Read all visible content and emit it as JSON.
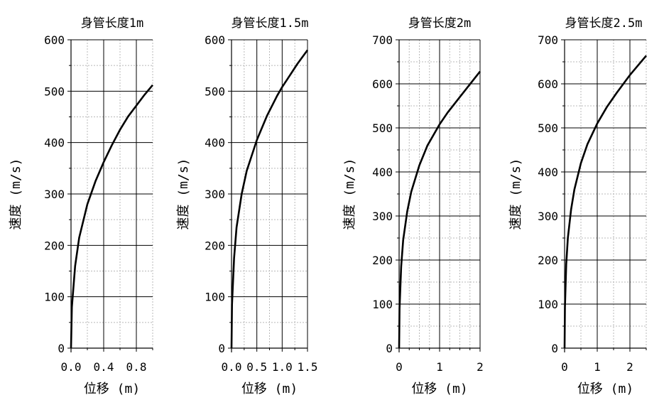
{
  "chart_data": [
    {
      "type": "line",
      "title": "身管长度1m",
      "xlabel": "位移 (m)",
      "ylabel": "速度 (m/s)",
      "xlim": [
        0,
        1
      ],
      "ylim": [
        0,
        600
      ],
      "xticks": [
        0,
        0.4,
        0.8
      ],
      "xtick_labels": [
        "0.0",
        "0.4",
        "0.8"
      ],
      "yticks": [
        0,
        100,
        200,
        300,
        400,
        500,
        600
      ],
      "ytick_labels": [
        "0",
        "100",
        "200",
        "300",
        "400",
        "500",
        "600"
      ],
      "xminor": [
        0.2,
        0.6,
        1.0
      ],
      "yminor": [
        50,
        150,
        250,
        350,
        450,
        550
      ],
      "grid": true,
      "series": [
        {
          "x": [
            0,
            0.01,
            0.05,
            0.1,
            0.2,
            0.3,
            0.4,
            0.5,
            0.6,
            0.7,
            0.8,
            0.9,
            1.0
          ],
          "y": [
            0,
            80,
            160,
            215,
            280,
            325,
            362,
            395,
            425,
            451,
            472,
            493,
            512
          ]
        }
      ]
    },
    {
      "type": "line",
      "title": "身管长度1.5m",
      "xlabel": "位移 (m)",
      "ylabel": "速度 (m/s)",
      "xlim": [
        0,
        1.5
      ],
      "ylim": [
        0,
        600
      ],
      "xticks": [
        0,
        0.5,
        1.0,
        1.5
      ],
      "xtick_labels": [
        "0.0",
        "0.5",
        "1.0",
        "1.5"
      ],
      "yticks": [
        0,
        100,
        200,
        300,
        400,
        500,
        600
      ],
      "ytick_labels": [
        "0",
        "100",
        "200",
        "300",
        "400",
        "500",
        "600"
      ],
      "xminor": [
        0.25,
        0.75,
        1.25
      ],
      "yminor": [
        50,
        150,
        250,
        350,
        450,
        550
      ],
      "grid": true,
      "series": [
        {
          "x": [
            0,
            0.01,
            0.05,
            0.1,
            0.2,
            0.3,
            0.5,
            0.7,
            0.9,
            1.0,
            1.1,
            1.3,
            1.5
          ],
          "y": [
            0,
            85,
            175,
            235,
            300,
            345,
            405,
            452,
            491,
            508,
            523,
            553,
            580
          ]
        }
      ]
    },
    {
      "type": "line",
      "title": "身管长度2m",
      "xlabel": "位移 (m)",
      "ylabel": "速度 (m/s)",
      "xlim": [
        0,
        2
      ],
      "ylim": [
        0,
        700
      ],
      "xticks": [
        0,
        1,
        2
      ],
      "xtick_labels": [
        "0",
        "1",
        "2"
      ],
      "yticks": [
        0,
        100,
        200,
        300,
        400,
        500,
        600,
        700
      ],
      "ytick_labels": [
        "0",
        "100",
        "200",
        "300",
        "400",
        "500",
        "600",
        "700"
      ],
      "xminor": [
        0.25,
        0.5,
        0.75,
        1.25,
        1.5,
        1.75
      ],
      "yminor": [
        50,
        150,
        250,
        350,
        450,
        550,
        650
      ],
      "grid": true,
      "series": [
        {
          "x": [
            0,
            0.01,
            0.05,
            0.1,
            0.2,
            0.3,
            0.5,
            0.7,
            1.0,
            1.2,
            1.5,
            1.8,
            2.0
          ],
          "y": [
            0,
            90,
            185,
            245,
            310,
            355,
            415,
            460,
            508,
            535,
            570,
            605,
            628
          ]
        }
      ]
    },
    {
      "type": "line",
      "title": "身管长度2.5m",
      "xlabel": "位移 (m)",
      "ylabel": "速度 (m/s)",
      "xlim": [
        0,
        2.5
      ],
      "ylim": [
        0,
        700
      ],
      "xticks": [
        0,
        1,
        2
      ],
      "xtick_labels": [
        "0",
        "1",
        "2"
      ],
      "yticks": [
        0,
        100,
        200,
        300,
        400,
        500,
        600,
        700
      ],
      "ytick_labels": [
        "0",
        "100",
        "200",
        "300",
        "400",
        "500",
        "600",
        "700"
      ],
      "xminor": [
        0.5,
        1.5,
        2.5
      ],
      "yminor": [
        50,
        150,
        250,
        350,
        450,
        550,
        650
      ],
      "grid": true,
      "series": [
        {
          "x": [
            0,
            0.01,
            0.05,
            0.1,
            0.2,
            0.3,
            0.5,
            0.7,
            1.0,
            1.3,
            1.6,
            2.0,
            2.5
          ],
          "y": [
            0,
            92,
            190,
            250,
            315,
            360,
            420,
            463,
            510,
            548,
            580,
            620,
            664
          ]
        }
      ]
    }
  ]
}
